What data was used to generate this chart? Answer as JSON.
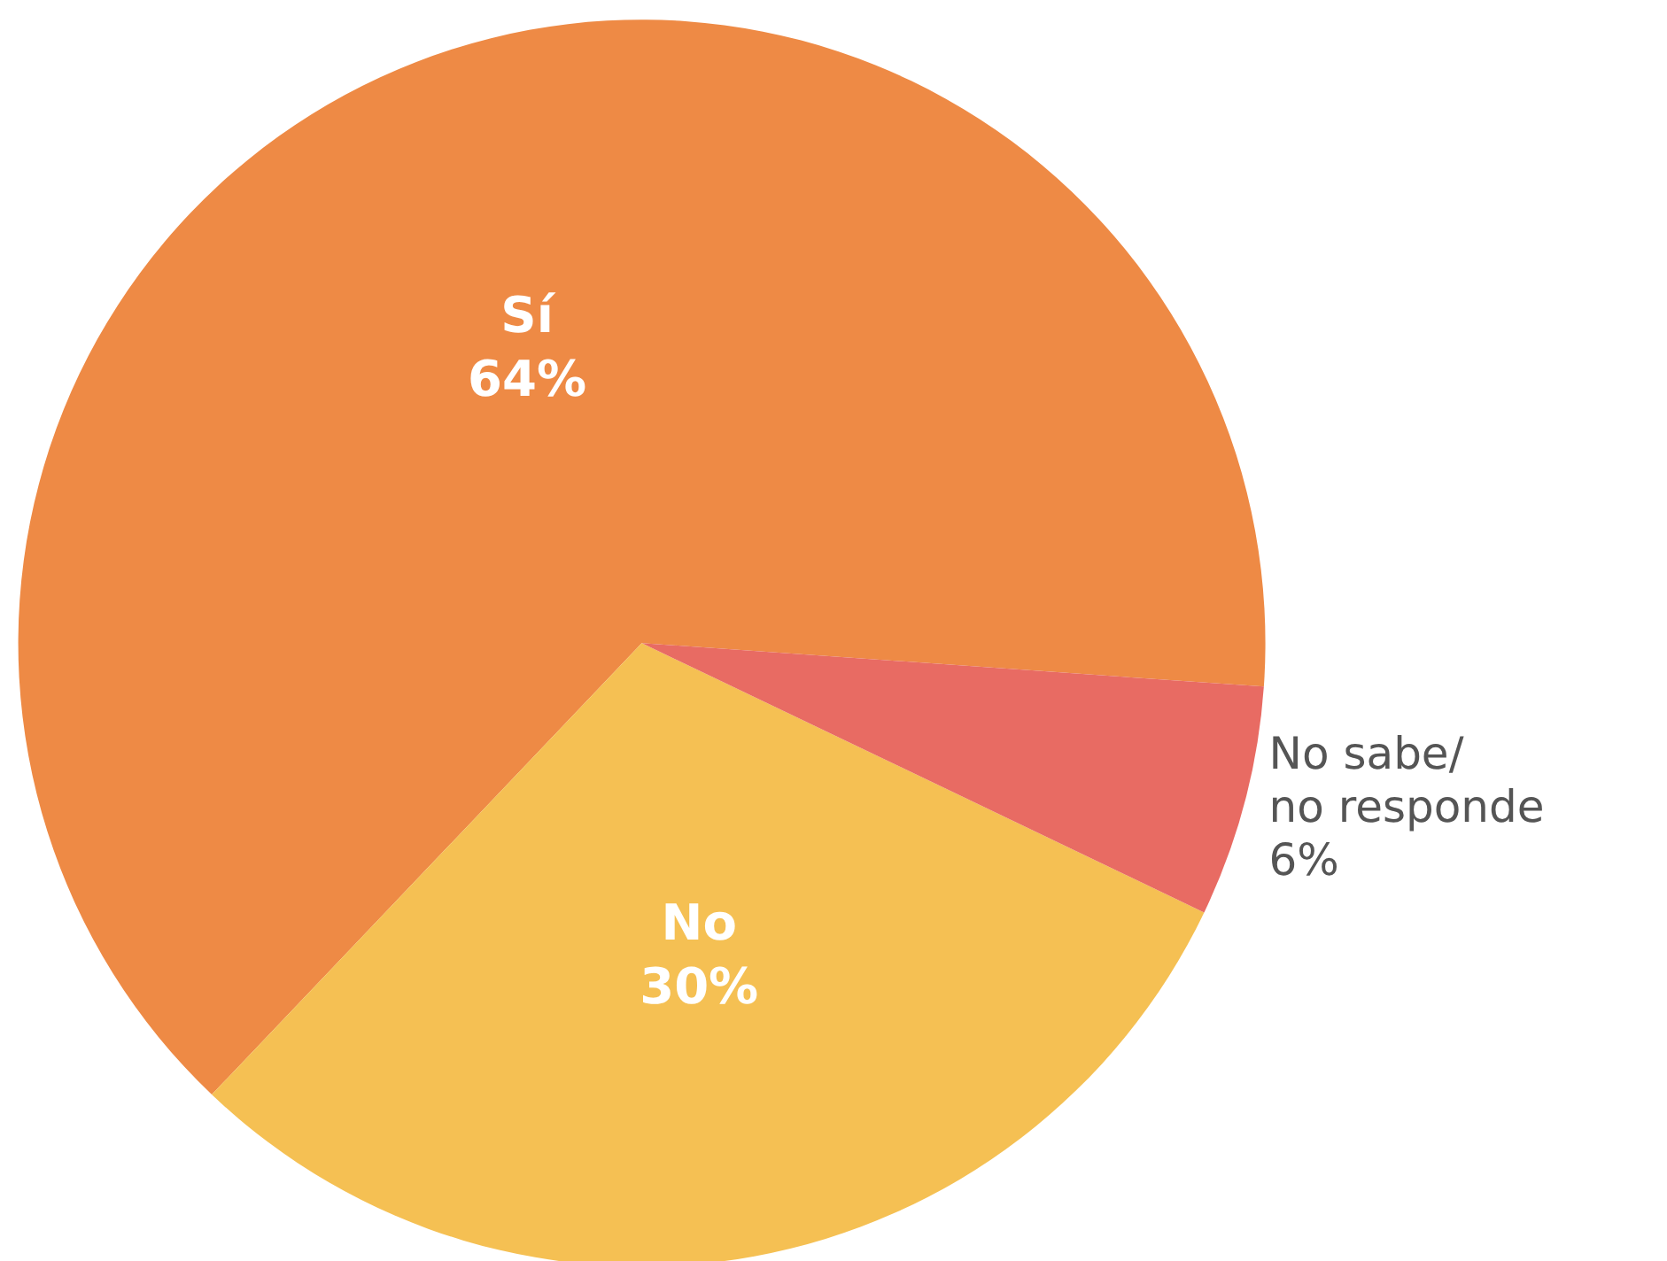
{
  "chart_data": {
    "type": "pie",
    "categories": [
      "Sí",
      "No",
      "No sabe/ no responde"
    ],
    "values": [
      64,
      30,
      6
    ],
    "colors": [
      "#ee8a45",
      "#f5c053",
      "#e86b63"
    ],
    "value_labels": [
      "64%",
      "30%",
      "6%"
    ]
  }
}
